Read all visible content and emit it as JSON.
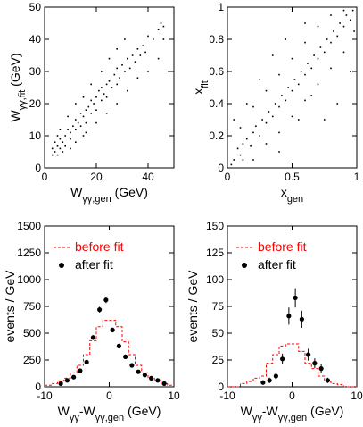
{
  "colors": {
    "before": "#ff0000",
    "after": "#000000",
    "axis": "#000000"
  },
  "chart_data": [
    {
      "type": "scatter",
      "xlabel": {
        "main": "W",
        "sub": "γγ,gen",
        "unit": " (GeV)"
      },
      "ylabel": {
        "main": "W",
        "sub": "γγ,fit",
        "unit": " (GeV)"
      },
      "xlim": [
        0,
        50
      ],
      "ylim": [
        0,
        50
      ],
      "x_ticks": [
        "0",
        "20",
        "40"
      ],
      "y_ticks": [
        "0",
        "10",
        "20",
        "30",
        "40",
        "50"
      ],
      "x_tick_values": [
        0,
        20,
        40
      ],
      "y_tick_values": [
        0,
        10,
        20,
        30,
        40,
        50
      ],
      "points": [
        [
          4,
          5
        ],
        [
          5,
          7
        ],
        [
          6,
          6
        ],
        [
          6,
          9
        ],
        [
          7,
          8
        ],
        [
          8,
          10
        ],
        [
          8,
          7
        ],
        [
          9,
          12
        ],
        [
          10,
          11
        ],
        [
          10,
          9
        ],
        [
          11,
          13
        ],
        [
          12,
          12
        ],
        [
          12,
          15
        ],
        [
          13,
          14
        ],
        [
          14,
          13
        ],
        [
          14,
          17
        ],
        [
          15,
          16
        ],
        [
          16,
          18
        ],
        [
          16,
          14
        ],
        [
          17,
          19
        ],
        [
          18,
          17
        ],
        [
          18,
          21
        ],
        [
          19,
          20
        ],
        [
          20,
          22
        ],
        [
          20,
          18
        ],
        [
          21,
          24
        ],
        [
          22,
          21
        ],
        [
          22,
          25
        ],
        [
          23,
          23
        ],
        [
          24,
          26
        ],
        [
          24,
          22
        ],
        [
          25,
          27
        ],
        [
          26,
          25
        ],
        [
          27,
          29
        ],
        [
          28,
          26
        ],
        [
          28,
          31
        ],
        [
          29,
          28
        ],
        [
          30,
          32
        ],
        [
          31,
          30
        ],
        [
          32,
          34
        ],
        [
          33,
          31
        ],
        [
          34,
          35
        ],
        [
          35,
          33
        ],
        [
          36,
          37
        ],
        [
          37,
          35
        ],
        [
          38,
          38
        ],
        [
          39,
          36
        ],
        [
          40,
          41
        ],
        [
          42,
          40
        ],
        [
          44,
          43
        ],
        [
          45,
          45
        ],
        [
          46,
          40
        ],
        [
          6,
          12
        ],
        [
          9,
          16
        ],
        [
          12,
          20
        ],
        [
          15,
          22
        ],
        [
          18,
          26
        ],
        [
          22,
          30
        ],
        [
          25,
          34
        ],
        [
          28,
          37
        ],
        [
          31,
          40
        ],
        [
          12,
          8
        ],
        [
          16,
          11
        ],
        [
          20,
          14
        ],
        [
          24,
          17
        ],
        [
          28,
          20
        ],
        [
          32,
          24
        ],
        [
          36,
          28
        ],
        [
          40,
          30
        ],
        [
          5,
          4
        ],
        [
          7,
          5
        ],
        [
          3,
          4
        ],
        [
          3,
          6
        ],
        [
          4,
          8
        ],
        [
          5,
          10
        ],
        [
          10,
          6
        ],
        [
          15,
          10
        ],
        [
          48,
          30
        ],
        [
          44,
          34
        ],
        [
          46,
          44
        ]
      ]
    },
    {
      "type": "scatter",
      "xlabel": {
        "main": "x",
        "sub": "gen",
        "unit": ""
      },
      "ylabel": {
        "main": "x",
        "sub": "fit",
        "unit": ""
      },
      "xlim": [
        0,
        1
      ],
      "ylim": [
        0,
        1
      ],
      "x_ticks": [
        "0",
        "0.5",
        "1"
      ],
      "y_ticks": [
        "0",
        "0.2",
        "0.4",
        "0.6",
        "0.8",
        "1"
      ],
      "x_tick_values": [
        0,
        0.5,
        1
      ],
      "y_tick_values": [
        0,
        0.2,
        0.4,
        0.6,
        0.8,
        1
      ],
      "points": [
        [
          0.05,
          0.05
        ],
        [
          0.08,
          0.12
        ],
        [
          0.1,
          0.08
        ],
        [
          0.12,
          0.15
        ],
        [
          0.15,
          0.18
        ],
        [
          0.18,
          0.14
        ],
        [
          0.2,
          0.22
        ],
        [
          0.22,
          0.26
        ],
        [
          0.25,
          0.2
        ],
        [
          0.27,
          0.3
        ],
        [
          0.3,
          0.28
        ],
        [
          0.32,
          0.35
        ],
        [
          0.35,
          0.32
        ],
        [
          0.37,
          0.4
        ],
        [
          0.4,
          0.38
        ],
        [
          0.42,
          0.45
        ],
        [
          0.45,
          0.42
        ],
        [
          0.47,
          0.5
        ],
        [
          0.5,
          0.48
        ],
        [
          0.52,
          0.55
        ],
        [
          0.55,
          0.52
        ],
        [
          0.57,
          0.6
        ],
        [
          0.6,
          0.58
        ],
        [
          0.62,
          0.65
        ],
        [
          0.65,
          0.62
        ],
        [
          0.67,
          0.7
        ],
        [
          0.7,
          0.68
        ],
        [
          0.72,
          0.75
        ],
        [
          0.75,
          0.72
        ],
        [
          0.77,
          0.8
        ],
        [
          0.8,
          0.78
        ],
        [
          0.82,
          0.85
        ],
        [
          0.85,
          0.82
        ],
        [
          0.87,
          0.9
        ],
        [
          0.9,
          0.88
        ],
        [
          0.92,
          0.95
        ],
        [
          0.95,
          0.92
        ],
        [
          0.97,
          0.98
        ],
        [
          0.1,
          0.25
        ],
        [
          0.2,
          0.38
        ],
        [
          0.3,
          0.48
        ],
        [
          0.4,
          0.58
        ],
        [
          0.5,
          0.68
        ],
        [
          0.6,
          0.78
        ],
        [
          0.7,
          0.88
        ],
        [
          0.2,
          0.05
        ],
        [
          0.3,
          0.15
        ],
        [
          0.4,
          0.22
        ],
        [
          0.5,
          0.32
        ],
        [
          0.6,
          0.42
        ],
        [
          0.7,
          0.52
        ],
        [
          0.8,
          0.62
        ],
        [
          0.9,
          0.72
        ],
        [
          0.15,
          0.4
        ],
        [
          0.25,
          0.55
        ],
        [
          0.85,
          0.4
        ],
        [
          0.75,
          0.3
        ],
        [
          0.95,
          0.6
        ],
        [
          0.05,
          0.3
        ],
        [
          0.35,
          0.7
        ],
        [
          0.45,
          0.8
        ],
        [
          0.55,
          0.3
        ],
        [
          0.65,
          0.45
        ],
        [
          0.98,
          0.85
        ],
        [
          0.9,
          0.98
        ],
        [
          0.03,
          0.02
        ],
        [
          0.12,
          0.05
        ],
        [
          0.6,
          0.9
        ],
        [
          0.8,
          0.95
        ],
        [
          0.4,
          0.1
        ]
      ]
    },
    {
      "type": "bar",
      "xlabel": {
        "main": "W",
        "sub1": "γγ",
        "mid": "-W",
        "sub2": "γγ,gen",
        "unit": " (GeV)"
      },
      "ylabel": "events / GeV",
      "xlim": [
        -10,
        10
      ],
      "ylim": [
        0,
        1500
      ],
      "x_ticks": [
        "-10",
        "0",
        "10"
      ],
      "y_ticks": [
        "0",
        "250",
        "500",
        "750",
        "1000",
        "1250",
        "1500"
      ],
      "x_tick_values": [
        -10,
        0,
        10
      ],
      "y_tick_values": [
        0,
        250,
        500,
        750,
        1000,
        1250,
        1500
      ],
      "series": [
        {
          "name": "before fit",
          "style": "dashed-histogram",
          "x": [
            -10,
            -9,
            -8,
            -7,
            -6,
            -5,
            -4,
            -3,
            -2,
            -1,
            0,
            1,
            2,
            3,
            4,
            5,
            6,
            7,
            8,
            9
          ],
          "values": [
            15,
            30,
            55,
            80,
            130,
            200,
            300,
            430,
            560,
            620,
            620,
            560,
            420,
            300,
            200,
            130,
            80,
            55,
            30,
            15
          ]
        },
        {
          "name": "after fit",
          "style": "points",
          "x": [
            -7.5,
            -6.5,
            -5.5,
            -4.5,
            -3.5,
            -2.5,
            -1.5,
            -0.5,
            0.5,
            1.5,
            2.5,
            3.5,
            4.5,
            5.5,
            6.5,
            7.5,
            8.5
          ],
          "values": [
            30,
            60,
            90,
            150,
            230,
            460,
            720,
            810,
            530,
            380,
            280,
            200,
            140,
            110,
            80,
            60,
            30
          ],
          "errors": [
            6,
            8,
            10,
            12,
            15,
            22,
            27,
            29,
            23,
            20,
            17,
            14,
            12,
            10,
            9,
            8,
            6
          ]
        }
      ],
      "legend": "top-right"
    },
    {
      "type": "bar",
      "xlabel": {
        "main": "W",
        "sub1": "γγ",
        "mid": "-W",
        "sub2": "γγ,gen",
        "unit": " (GeV)"
      },
      "ylabel": "events / GeV",
      "xlim": [
        -10,
        10
      ],
      "ylim": [
        0,
        150
      ],
      "x_ticks": [
        "-10",
        "0",
        "10"
      ],
      "y_ticks": [
        "0",
        "25",
        "50",
        "75",
        "100",
        "125",
        "150"
      ],
      "x_tick_values": [
        -10,
        0,
        10
      ],
      "y_tick_values": [
        0,
        25,
        50,
        75,
        100,
        125,
        150
      ],
      "series": [
        {
          "name": "before fit",
          "style": "dashed-histogram",
          "x": [
            -10,
            -9,
            -8,
            -7,
            -6,
            -5,
            -4,
            -3,
            -2,
            -1,
            0,
            1,
            2,
            3,
            4,
            5,
            6,
            7,
            8,
            9
          ],
          "values": [
            0,
            0,
            3,
            5,
            8,
            10,
            22,
            30,
            38,
            40,
            40,
            33,
            22,
            17,
            10,
            5,
            3,
            2,
            0,
            0
          ]
        },
        {
          "name": "after fit",
          "style": "points",
          "x": [
            -4.5,
            -3.5,
            -2.5,
            -1.5,
            -0.5,
            0.5,
            1.5,
            2.5,
            3.5,
            4.5,
            5.5
          ],
          "values": [
            4,
            6,
            10,
            26,
            66,
            83,
            63,
            30,
            22,
            17,
            6
          ],
          "errors": [
            2,
            2.5,
            3,
            5,
            8,
            9,
            8,
            5.5,
            4.5,
            4,
            2.5
          ]
        }
      ],
      "legend": "top-right"
    }
  ]
}
